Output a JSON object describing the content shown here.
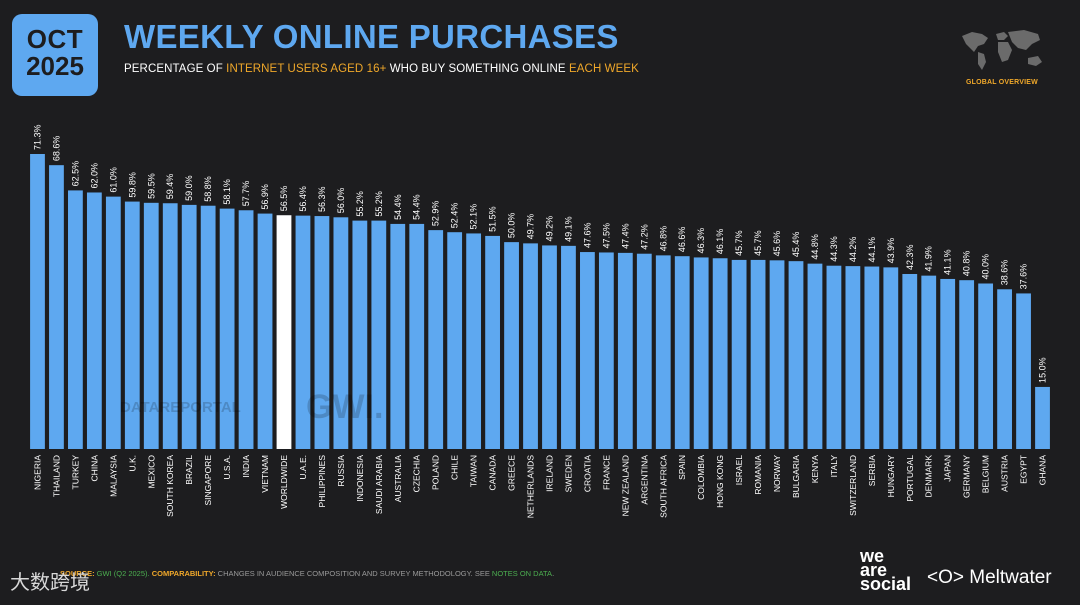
{
  "header": {
    "month": "OCT",
    "year": "2025",
    "title": "WEEKLY ONLINE PURCHASES",
    "subtitle_parts": [
      "PERCENTAGE OF ",
      "INTERNET USERS AGED 16+",
      " WHO BUY SOMETHING ONLINE ",
      "EACH WEEK"
    ],
    "badge": "GLOBAL OVERVIEW"
  },
  "colors": {
    "bar": "#5ea8f0",
    "highlight_bar": "#ffffff",
    "accent": "#f0a82a",
    "background": "#1d1d1f"
  },
  "chart_data": {
    "type": "bar",
    "title": "WEEKLY ONLINE PURCHASES",
    "categories": [
      "NIGERIA",
      "THAILAND",
      "TURKEY",
      "CHINA",
      "MALAYSIA",
      "U.K.",
      "MEXICO",
      "SOUTH KOREA",
      "BRAZIL",
      "SINGAPORE",
      "U.S.A.",
      "INDIA",
      "VIETNAM",
      "WORLDWIDE",
      "U.A.E.",
      "PHILIPPINES",
      "RUSSIA",
      "INDONESIA",
      "SAUDI ARABIA",
      "AUSTRALIA",
      "CZECHIA",
      "POLAND",
      "CHILE",
      "TAIWAN",
      "CANADA",
      "GREECE",
      "NETHERLANDS",
      "IRELAND",
      "SWEDEN",
      "CROATIA",
      "FRANCE",
      "NEW ZEALAND",
      "ARGENTINA",
      "SOUTH AFRICA",
      "SPAIN",
      "COLOMBIA",
      "HONG KONG",
      "ISRAEL",
      "ROMANIA",
      "NORWAY",
      "BULGARIA",
      "KENYA",
      "ITALY",
      "SWITZERLAND",
      "SERBIA",
      "HUNGARY",
      "PORTUGAL",
      "DENMARK",
      "JAPAN",
      "GERMANY",
      "BELGIUM",
      "AUSTRIA",
      "EGYPT",
      "GHANA"
    ],
    "values": [
      71.3,
      68.6,
      62.5,
      62.0,
      61.0,
      59.8,
      59.5,
      59.4,
      59.0,
      58.8,
      58.1,
      57.7,
      56.9,
      56.5,
      56.4,
      56.3,
      56.0,
      55.2,
      55.2,
      54.4,
      54.4,
      52.9,
      52.4,
      52.1,
      51.5,
      50.0,
      49.7,
      49.2,
      49.1,
      47.6,
      47.5,
      47.4,
      47.2,
      46.8,
      46.6,
      46.3,
      46.1,
      45.7,
      45.7,
      45.6,
      45.4,
      44.8,
      44.3,
      44.2,
      44.1,
      43.9,
      42.3,
      41.9,
      41.1,
      40.8,
      40.0,
      38.6,
      37.6,
      15.0
    ],
    "value_labels": [
      "71.3%",
      "68.6%",
      "62.5%",
      "62.0%",
      "61.0%",
      "59.8%",
      "59.5%",
      "59.4%",
      "59.0%",
      "58.8%",
      "58.1%",
      "57.7%",
      "56.9%",
      "56.5%",
      "56.4%",
      "56.3%",
      "56.0%",
      "55.2%",
      "55.2%",
      "54.4%",
      "54.4%",
      "52.9%",
      "52.4%",
      "52.1%",
      "51.5%",
      "50.0%",
      "49.7%",
      "49.2%",
      "49.1%",
      "47.6%",
      "47.5%",
      "47.4%",
      "47.2%",
      "46.8%",
      "46.6%",
      "46.3%",
      "46.1%",
      "45.7%",
      "45.7%",
      "45.6%",
      "45.4%",
      "44.8%",
      "44.3%",
      "44.2%",
      "44.1%",
      "43.9%",
      "42.3%",
      "41.9%",
      "41.1%",
      "40.8%",
      "40.0%",
      "38.6%",
      "37.6%",
      "15.0%"
    ],
    "highlight": "WORLDWIDE",
    "ylim": [
      0,
      71.3
    ],
    "grid": false,
    "legend": "none"
  },
  "watermarks": [
    "DATAREPORTAL",
    "GWI."
  ],
  "footer": {
    "source_label": "SOURCE:",
    "source_text": " GWI (Q2 2025). ",
    "comparability_label": "COMPARABILITY:",
    "comparability_text": " CHANGES IN AUDIENCE COMPOSITION AND SURVEY METHODOLOGY. SEE ",
    "notes_link": "NOTES ON DATA",
    "end": "."
  },
  "brands": {
    "left_watermark": "大数跨境",
    "we_are_social": [
      "we",
      "are",
      "social"
    ],
    "meltwater": "Meltwater"
  }
}
